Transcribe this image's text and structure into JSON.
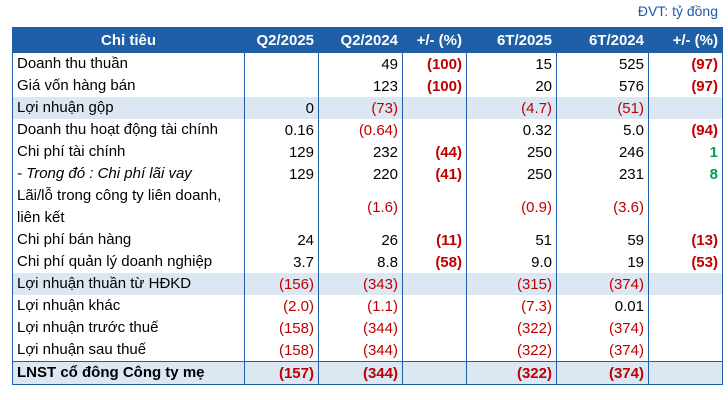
{
  "unit_note": "ĐVT: tỷ đồng",
  "columns": [
    "Chỉ tiêu",
    "Q2/2025",
    "Q2/2024",
    "+/- (%)",
    "6T/2025",
    "6T/2024",
    "+/- (%)"
  ],
  "rows": [
    {
      "label": "Doanh thu thuần",
      "q2_2025": "",
      "q2_2024": "49",
      "q_chg": "(100)",
      "h1_2025": "15",
      "h1_2024": "525",
      "h_chg": "(97)"
    },
    {
      "label": "Giá vốn hàng bán",
      "q2_2025": "",
      "q2_2024": "123",
      "q_chg": "(100)",
      "h1_2025": "20",
      "h1_2024": "576",
      "h_chg": "(97)"
    },
    {
      "label": "Lợi nhuận gộp",
      "q2_2025": "0",
      "q2_2024": "(73)",
      "q_chg": "",
      "h1_2025": "(4.7)",
      "h1_2024": "(51)",
      "h_chg": ""
    },
    {
      "label": "Doanh thu hoạt động tài chính",
      "q2_2025": "0.16",
      "q2_2024": "(0.64)",
      "q_chg": "",
      "h1_2025": "0.32",
      "h1_2024": "5.0",
      "h_chg": "(94)"
    },
    {
      "label": "Chi phí tài chính",
      "q2_2025": "129",
      "q2_2024": "232",
      "q_chg": "(44)",
      "h1_2025": "250",
      "h1_2024": "246",
      "h_chg": "1"
    },
    {
      "label": "- Trong đó : Chi phí lãi vay",
      "q2_2025": "129",
      "q2_2024": "220",
      "q_chg": "(41)",
      "h1_2025": "250",
      "h1_2024": "231",
      "h_chg": "8"
    },
    {
      "label": "Lãi/lỗ trong công ty liên doanh, liên kết",
      "q2_2025": "",
      "q2_2024": "(1.6)",
      "q_chg": "",
      "h1_2025": "(0.9)",
      "h1_2024": "(3.6)",
      "h_chg": ""
    },
    {
      "label": "Chi phí bán hàng",
      "q2_2025": "24",
      "q2_2024": "26",
      "q_chg": "(11)",
      "h1_2025": "51",
      "h1_2024": "59",
      "h_chg": "(13)"
    },
    {
      "label": "Chi phí quản lý doanh nghiệp",
      "q2_2025": "3.7",
      "q2_2024": "8.8",
      "q_chg": "(58)",
      "h1_2025": "9.0",
      "h1_2024": "19",
      "h_chg": "(53)"
    },
    {
      "label": "Lợi nhuận thuần từ HĐKD",
      "q2_2025": "(156)",
      "q2_2024": "(343)",
      "q_chg": "",
      "h1_2025": "(315)",
      "h1_2024": "(374)",
      "h_chg": ""
    },
    {
      "label": "Lợi nhuận khác",
      "q2_2025": "(2.0)",
      "q2_2024": "(1.1)",
      "q_chg": "",
      "h1_2025": "(7.3)",
      "h1_2024": "0.01",
      "h_chg": ""
    },
    {
      "label": "Lợi nhuận trước thuế",
      "q2_2025": "(158)",
      "q2_2024": "(344)",
      "q_chg": "",
      "h1_2025": "(322)",
      "h1_2024": "(374)",
      "h_chg": ""
    },
    {
      "label": "Lợi nhuận sau thuế",
      "q2_2025": "(158)",
      "q2_2024": "(344)",
      "q_chg": "",
      "h1_2025": "(322)",
      "h1_2024": "(374)",
      "h_chg": ""
    },
    {
      "label": "LNST cổ đông Công ty mẹ",
      "q2_2025": "(157)",
      "q2_2024": "(344)",
      "q_chg": "",
      "h1_2025": "(322)",
      "h1_2024": "(374)",
      "h_chg": ""
    }
  ],
  "colors": {
    "header_bg": "#1f5fa8",
    "shade_bg": "#dce7f4",
    "negative": "#c00000",
    "positive": "#00a050",
    "unit_text": "#1e5aa8"
  }
}
